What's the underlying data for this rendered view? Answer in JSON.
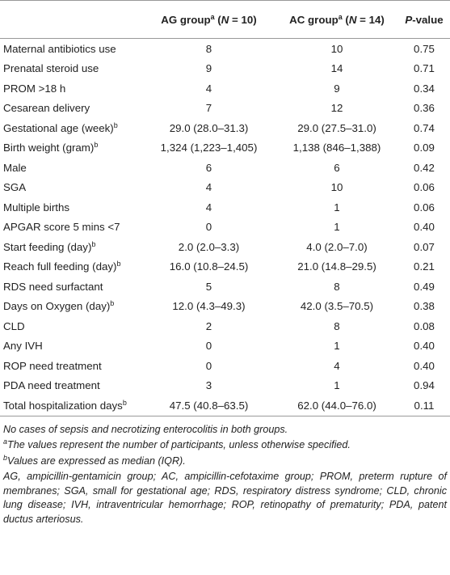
{
  "header": [
    [
      "AG group",
      "a",
      " (",
      "N",
      " = 10)"
    ],
    [
      "AC group",
      "a",
      " (",
      "N",
      " = 14)"
    ],
    [
      "P",
      "-value"
    ]
  ],
  "rows": [
    {
      "label": "Maternal antibiotics use",
      "cells": [
        "8",
        "10",
        "0.75"
      ]
    },
    {
      "label": "Prenatal steroid use",
      "cells": [
        "9",
        "14",
        "0.71"
      ]
    },
    {
      "label": "PROM >18 h",
      "cells": [
        "4",
        "9",
        "0.34"
      ]
    },
    {
      "label": "Cesarean delivery",
      "cells": [
        "7",
        "12",
        "0.36"
      ]
    },
    {
      "label": "Gestational age (week)",
      "sup": "b",
      "cells": [
        "29.0 (28.0–31.3)",
        "29.0 (27.5–31.0)",
        "0.74"
      ]
    },
    {
      "label": "Birth weight (gram)",
      "sup": "b",
      "cells": [
        "1,324 (1,223–1,405)",
        "1,138 (846–1,388)",
        "0.09"
      ]
    },
    {
      "label": "Male",
      "cells": [
        "6",
        "6",
        "0.42"
      ]
    },
    {
      "label": "SGA",
      "cells": [
        "4",
        "10",
        "0.06"
      ]
    },
    {
      "label": "Multiple births",
      "cells": [
        "4",
        "1",
        "0.06"
      ]
    },
    {
      "label": "APGAR score 5 mins <7",
      "cells": [
        "0",
        "1",
        "0.40"
      ]
    },
    {
      "label": "Start feeding (day)",
      "sup": "b",
      "cells": [
        "2.0 (2.0–3.3)",
        "4.0 (2.0–7.0)",
        "0.07"
      ]
    },
    {
      "label": "Reach full feeding (day)",
      "sup": "b",
      "cells": [
        "16.0 (10.8–24.5)",
        "21.0 (14.8–29.5)",
        "0.21"
      ]
    },
    {
      "label": "RDS need surfactant",
      "cells": [
        "5",
        "8",
        "0.49"
      ]
    },
    {
      "label": "Days on Oxygen (day)",
      "sup": "b",
      "cells": [
        "12.0 (4.3–49.3)",
        "42.0 (3.5–70.5)",
        "0.38"
      ]
    },
    {
      "label": "CLD",
      "cells": [
        "2",
        "8",
        "0.08"
      ]
    },
    {
      "label": "Any IVH",
      "cells": [
        "0",
        "1",
        "0.40"
      ]
    },
    {
      "label": "ROP need treatment",
      "cells": [
        "0",
        "4",
        "0.40"
      ]
    },
    {
      "label": "PDA need treatment",
      "cells": [
        "3",
        "1",
        "0.94"
      ]
    },
    {
      "label": "Total hospitalization days",
      "sup": "b",
      "cells": [
        "47.5 (40.8–63.5)",
        "62.0 (44.0–76.0)",
        "0.11"
      ]
    }
  ],
  "notes": [
    {
      "text": "No cases of sepsis and necrotizing enterocolitis in both groups."
    },
    {
      "sup": "a",
      "text": "The values represent the number of participants, unless otherwise specified."
    },
    {
      "sup": "b",
      "text": "Values are expressed as median (IQR)."
    },
    {
      "text": "AG, ampicillin-gentamicin group; AC, ampicillin-cefotaxime group; PROM, preterm rupture of membranes; SGA, small for gestational age; RDS, respiratory distress syndrome; CLD, chronic lung disease; IVH, intraventricular hemorrhage; ROP, retinopathy of prematurity; PDA, patent ductus arteriosus."
    }
  ]
}
